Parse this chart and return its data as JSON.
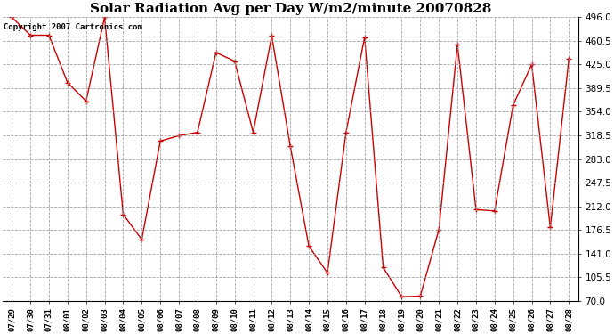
{
  "title": "Solar Radiation Avg per Day W/m2/minute 20070828",
  "copyright_text": "Copyright 2007 Cartronics.com",
  "labels": [
    "07/29",
    "07/30",
    "07/31",
    "08/01",
    "08/02",
    "08/03",
    "08/04",
    "08/05",
    "08/06",
    "08/07",
    "08/08",
    "08/09",
    "08/10",
    "08/11",
    "08/12",
    "08/13",
    "08/14",
    "08/15",
    "08/16",
    "08/17",
    "08/18",
    "08/19",
    "08/20",
    "08/21",
    "08/22",
    "08/23",
    "08/24",
    "08/25",
    "08/26",
    "08/27",
    "08/28"
  ],
  "values": [
    496,
    469,
    469,
    398,
    370,
    496,
    200,
    162,
    310,
    318,
    323,
    443,
    430,
    323,
    468,
    302,
    152,
    112,
    323,
    466,
    120,
    76,
    77,
    177,
    455,
    207,
    205,
    364,
    425,
    180,
    433
  ],
  "line_color": "#cc0000",
  "marker": "+",
  "marker_color": "#cc0000",
  "background_color": "#ffffff",
  "grid_color": "#999999",
  "yticks": [
    70.0,
    105.5,
    141.0,
    176.5,
    212.0,
    247.5,
    283.0,
    318.5,
    354.0,
    389.5,
    425.0,
    460.5,
    496.0
  ],
  "ylim": [
    70.0,
    496.0
  ],
  "title_fontsize": 11,
  "copyright_fontsize": 6.5,
  "figwidth": 6.9,
  "figheight": 3.75,
  "dpi": 100
}
